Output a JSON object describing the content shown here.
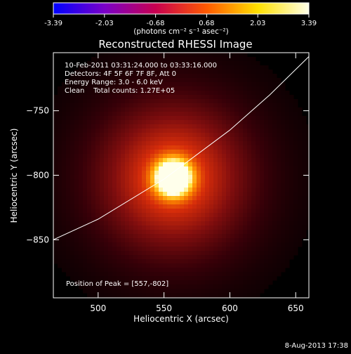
{
  "chart_data": {
    "type": "heatmap",
    "title": "Reconstructed RHESSI Image",
    "xlabel": "Heliocentric X (arcsec)",
    "ylabel": "Heliocentric Y (arcsec)",
    "xlim": [
      466,
      660
    ],
    "ylim": [
      -895,
      -705
    ],
    "x_ticks": [
      500,
      550,
      600,
      650
    ],
    "y_ticks": [
      -750,
      -800,
      -850
    ],
    "colorbar": {
      "range": [
        -3.39,
        3.39
      ],
      "ticks": [
        "-3.39",
        "-2.03",
        "-0.68",
        "0.68",
        "2.03",
        "3.39"
      ],
      "label": "(photons cm⁻² s⁻¹ asec⁻²)",
      "colors": [
        "#0000ff",
        "#7a00c8",
        "#c80050",
        "#ff5a00",
        "#ffe000",
        "#ffffe8"
      ]
    },
    "annotations": [
      "10-Feb-2011 03:31:24.000 to 03:33:16.000",
      "Detectors: 4F 5F 6F 7F 8F, Att 0",
      "Energy Range: 3.0 - 6.0 keV",
      "Clean    Total counts: 1.27E+05"
    ],
    "peak_label": "Position of Peak = [557,-802]",
    "peak": {
      "x": 557,
      "y": -802
    },
    "limb_curve": [
      [
        466,
        -850
      ],
      [
        500,
        -834
      ],
      [
        550,
        -803
      ],
      [
        600,
        -765
      ],
      [
        630,
        -738
      ],
      [
        660,
        -708
      ]
    ],
    "footer": "8-Aug-2013 17:38"
  }
}
